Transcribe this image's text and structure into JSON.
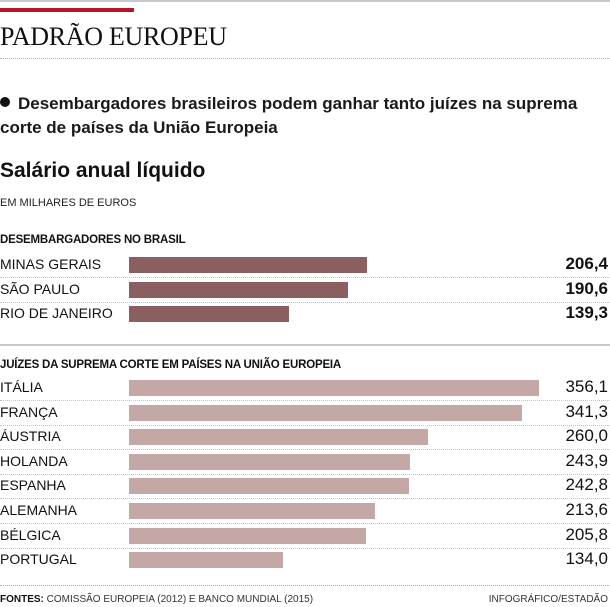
{
  "header": {
    "title": "PADRÃO EUROPEU",
    "accent_color": "#b5142b"
  },
  "subtitle": "Desembargadores brasileiros podem ganhar tanto juízes na suprema corte de países da União Europeia",
  "chart_title": "Salário anual líquido",
  "units": "EM  MILHARES DE EUROS",
  "footer": {
    "sources_label": "FONTES:",
    "sources_text": " COMISSÃO EUROPEIA (2012) E BANCO MUNDIAL (2015)",
    "credit": "INFOGRÁFICO/ESTADÃO"
  },
  "chart_data": [
    {
      "type": "bar",
      "orientation": "horizontal",
      "title": "DESEMBARGADORES NO BRASIL",
      "categories": [
        "MINAS GERAIS",
        "SÃO PAULO",
        "RIO DE JANEIRO"
      ],
      "values": [
        206.4,
        190.6,
        139.3
      ],
      "value_labels": [
        "206,4",
        "190,6",
        "139,3"
      ],
      "color": "#8b5f5f",
      "xlim": [
        0,
        356.1
      ],
      "unit": "milhares de euros"
    },
    {
      "type": "bar",
      "orientation": "horizontal",
      "title": "JUÍZES DA SUPREMA CORTE EM PAÍSES NA UNIÃO EUROPEIA",
      "categories": [
        "ITÁLIA",
        "FRANÇA",
        "ÁUSTRIA",
        "HOLANDA",
        "ESPANHA",
        "ALEMANHA",
        "BÉLGICA",
        "PORTUGAL"
      ],
      "values": [
        356.1,
        341.3,
        260.0,
        243.9,
        242.8,
        213.6,
        205.8,
        134.0
      ],
      "value_labels": [
        "356,1",
        "341,3",
        "260,0",
        "243,9",
        "242,8",
        "213,6",
        "205,8",
        "134,0"
      ],
      "color": "#c4a8a6",
      "xlim": [
        0,
        356.1
      ],
      "unit": "milhares de euros"
    }
  ]
}
